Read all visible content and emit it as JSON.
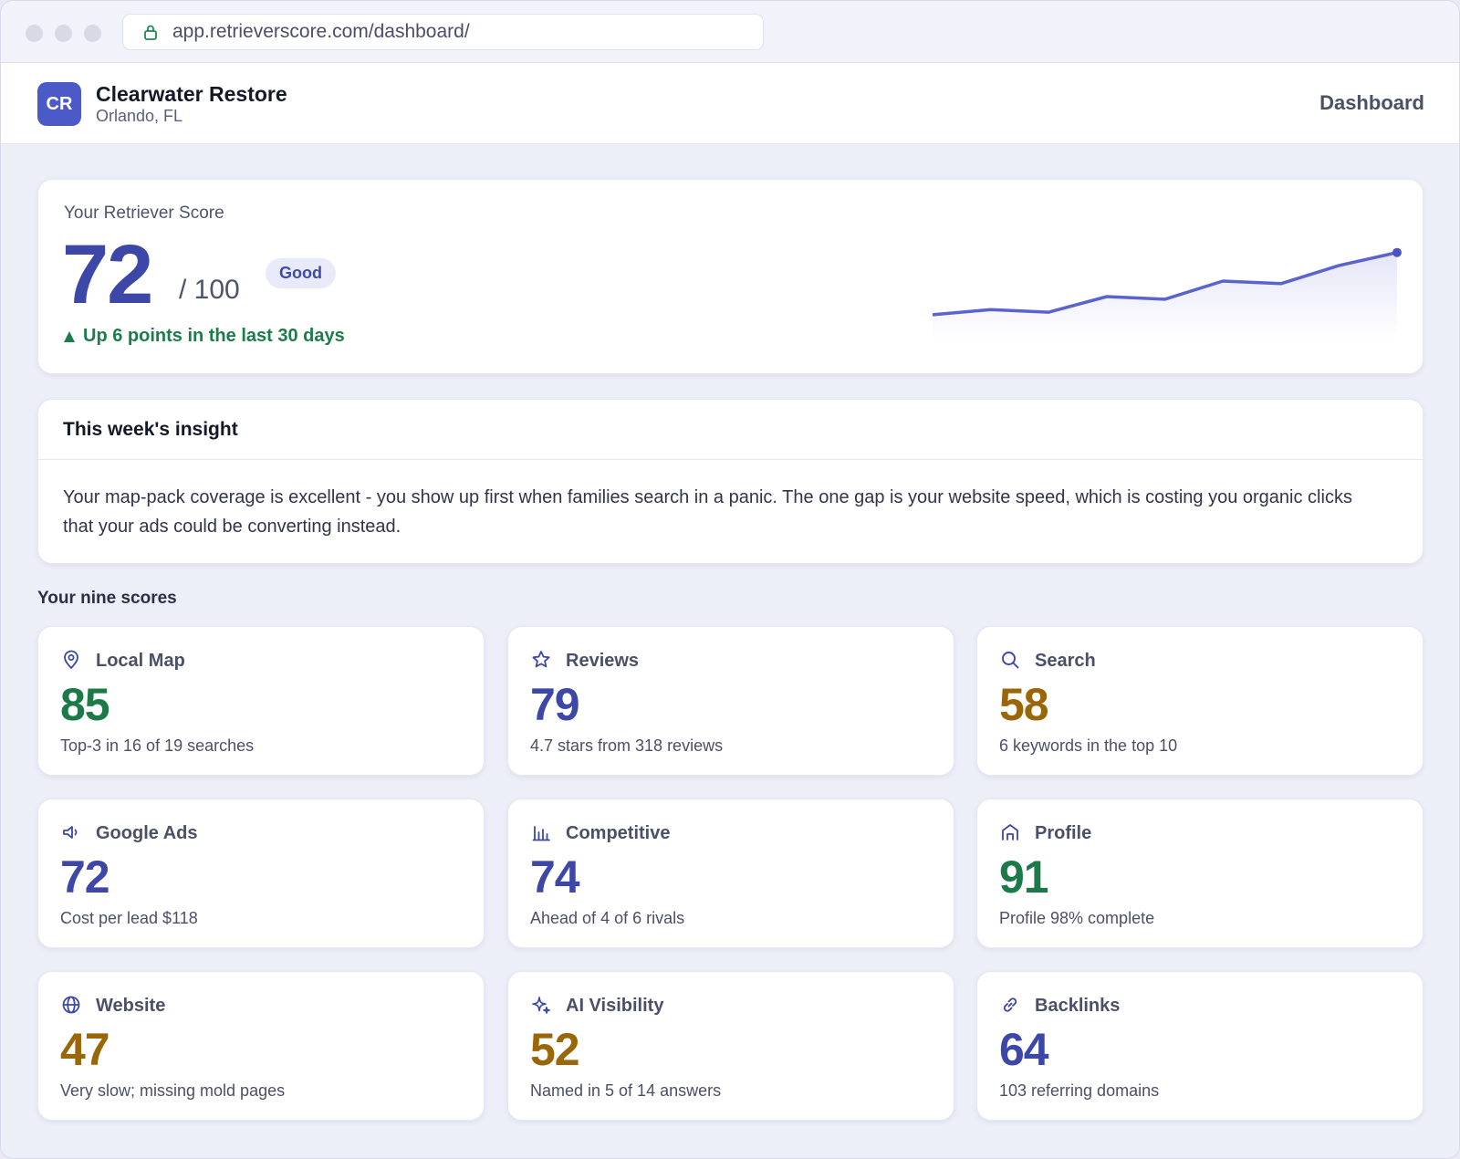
{
  "browser": {
    "url": "app.retrieverscore.com/dashboard/"
  },
  "header": {
    "logo_initials": "CR",
    "business_name": "Clearwater Restore",
    "location": "Orlando, FL",
    "nav_label": "Dashboard"
  },
  "score": {
    "label": "Your Retriever Score",
    "value": "72",
    "out_of": "/ 100",
    "badge": "Good",
    "trend": "Up 6 points in the last 30 days"
  },
  "chart_data": {
    "type": "area",
    "series": [
      {
        "values": [
          60,
          61,
          60.5,
          63.5,
          63,
          66.5,
          66,
          69.5,
          72
        ]
      }
    ]
  },
  "insight": {
    "title": "This week's insight",
    "body": "Your map-pack coverage is excellent - you show up first when families search in a panic. The one gap is your website speed, which is costing you organic clicks that your ads could be converting instead."
  },
  "scores_section_label": "Your nine scores",
  "tiles": [
    {
      "name": "Local Map",
      "value": "85",
      "desc": "Top-3 in 16 of 19 searches",
      "icon": "map-pin-icon",
      "tone": "green"
    },
    {
      "name": "Reviews",
      "value": "79",
      "desc": "4.7 stars from 318 reviews",
      "icon": "star-icon",
      "tone": "blue"
    },
    {
      "name": "Search",
      "value": "58",
      "desc": "6 keywords in the top 10",
      "icon": "search-icon",
      "tone": "amber"
    },
    {
      "name": "Google Ads",
      "value": "72",
      "desc": "Cost per lead $118",
      "icon": "megaphone-icon",
      "tone": "blue"
    },
    {
      "name": "Competitive",
      "value": "74",
      "desc": "Ahead of 4 of 6 rivals",
      "icon": "bar-chart-icon",
      "tone": "blue"
    },
    {
      "name": "Profile",
      "value": "91",
      "desc": "Profile 98% complete",
      "icon": "storefront-icon",
      "tone": "green"
    },
    {
      "name": "Website",
      "value": "47",
      "desc": "Very slow; missing mold pages",
      "icon": "globe-icon",
      "tone": "amber"
    },
    {
      "name": "AI Visibility",
      "value": "52",
      "desc": "Named in 5 of 14 answers",
      "icon": "sparkle-icon",
      "tone": "amber"
    },
    {
      "name": "Backlinks",
      "value": "64",
      "desc": "103 referring domains",
      "icon": "link-icon",
      "tone": "blue"
    }
  ],
  "colors": {
    "accent": "#3d47a8",
    "good_green": "#1b7a48",
    "warn_amber": "#9a6608",
    "sparkline": "#5b63cf"
  }
}
